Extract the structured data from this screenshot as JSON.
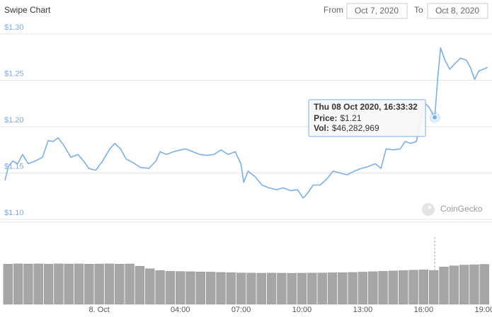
{
  "header": {
    "title": "Swipe Chart",
    "from_label": "From",
    "from_date": "Oct 7, 2020",
    "to_label": "To",
    "to_date": "Oct 8, 2020"
  },
  "watermark": "CoinGecko",
  "chart_data": [
    {
      "type": "line",
      "color": "#7cb0e4",
      "grid": true,
      "x": [
        -4.65,
        -4.48,
        -4.27,
        -4.02,
        -3.78,
        -3.5,
        -3.15,
        -2.8,
        -2.52,
        -2.27,
        -2.03,
        -1.75,
        -1.4,
        -1.05,
        -0.77,
        -0.52,
        -0.17,
        0.17,
        0.52,
        0.77,
        1.05,
        1.33,
        1.68,
        2.03,
        2.45,
        2.8,
        3.0,
        3.32,
        3.67,
        4.02,
        4.26,
        4.61,
        4.96,
        5.31,
        5.66,
        6.01,
        6.36,
        6.71,
        6.99,
        7.13,
        7.34,
        7.69,
        8.03,
        8.38,
        8.73,
        9.08,
        9.43,
        9.78,
        10.06,
        10.31,
        10.55,
        10.9,
        11.25,
        11.53,
        11.88,
        12.23,
        12.58,
        12.93,
        13.28,
        13.62,
        13.9,
        14.15,
        14.5,
        14.85,
        15.09,
        15.37,
        15.65,
        16.0,
        16.24,
        16.55,
        16.7,
        16.84,
        17.05,
        17.29,
        17.54,
        17.82,
        18.1,
        18.31,
        18.52,
        18.73,
        18.95,
        19.16
      ],
      "values": [
        1.142,
        1.157,
        1.163,
        1.16,
        1.17,
        1.16,
        1.163,
        1.167,
        1.185,
        1.184,
        1.188,
        1.18,
        1.167,
        1.17,
        1.163,
        1.155,
        1.153,
        1.163,
        1.176,
        1.182,
        1.176,
        1.165,
        1.161,
        1.156,
        1.155,
        1.163,
        1.173,
        1.17,
        1.173,
        1.175,
        1.176,
        1.173,
        1.17,
        1.169,
        1.17,
        1.175,
        1.17,
        1.173,
        1.16,
        1.14,
        1.152,
        1.146,
        1.137,
        1.134,
        1.132,
        1.134,
        1.131,
        1.132,
        1.123,
        1.129,
        1.137,
        1.137,
        1.144,
        1.152,
        1.15,
        1.148,
        1.152,
        1.155,
        1.157,
        1.16,
        1.155,
        1.176,
        1.175,
        1.176,
        1.184,
        1.182,
        1.184,
        1.226,
        1.222,
        1.21,
        1.253,
        1.285,
        1.272,
        1.262,
        1.268,
        1.274,
        1.272,
        1.264,
        1.251,
        1.26,
        1.262,
        1.264
      ],
      "xlim": [
        -4.65,
        19.2
      ],
      "ylim": [
        1.1,
        1.3
      ],
      "yticks": [
        {
          "value": 1.1,
          "label": "$1.10"
        },
        {
          "value": 1.15,
          "label": "$1.15"
        },
        {
          "value": 1.2,
          "label": "$1.20"
        },
        {
          "value": 1.25,
          "label": "$1.25"
        },
        {
          "value": 1.3,
          "label": "$1.30"
        }
      ]
    },
    {
      "type": "bar",
      "color": "#a6a6a6",
      "x": [
        -4.5,
        -4.0,
        -3.5,
        -3.0,
        -2.5,
        -2.0,
        -1.5,
        -1.0,
        -0.5,
        0.0,
        0.5,
        1.0,
        1.5,
        2.0,
        2.5,
        3.0,
        3.5,
        4.0,
        4.5,
        5.0,
        5.5,
        6.0,
        6.5,
        7.0,
        7.5,
        8.0,
        8.5,
        9.0,
        9.5,
        10.0,
        10.5,
        11.0,
        11.5,
        12.0,
        12.5,
        13.0,
        13.5,
        14.0,
        14.5,
        15.0,
        15.5,
        16.0,
        16.5,
        17.0,
        17.5,
        18.0,
        18.5,
        19.0
      ],
      "values": [
        54800000,
        55200000,
        55000000,
        55100000,
        54900000,
        55200000,
        55000000,
        55100000,
        54800000,
        55000000,
        55200000,
        54900000,
        55000000,
        52000000,
        48500000,
        46000000,
        45000000,
        44800000,
        44500000,
        44200000,
        44000000,
        43500000,
        43200000,
        42800000,
        42600000,
        42500000,
        42600000,
        42500000,
        42400000,
        42500000,
        42600000,
        42800000,
        43000000,
        43200000,
        43500000,
        44000000,
        44500000,
        45000000,
        45500000,
        46000000,
        46500000,
        47000000,
        46300000,
        51000000,
        52500000,
        53500000,
        54000000,
        54500000
      ],
      "xlim": [
        -4.65,
        19.2
      ],
      "ylim": [
        0,
        56000000
      ],
      "xticks": [
        {
          "value": 0,
          "label": "8. Oct"
        },
        {
          "value": 4,
          "label": "04:00"
        },
        {
          "value": 7,
          "label": "07:00"
        },
        {
          "value": 10,
          "label": "10:00"
        },
        {
          "value": 13,
          "label": "13:00"
        },
        {
          "value": 16,
          "label": "16:00"
        },
        {
          "value": 19,
          "label": "19:00"
        }
      ]
    }
  ],
  "tooltip": {
    "title": "Thu 08 Oct 2020, 16:33:32",
    "x": 16.55,
    "rows": [
      {
        "name": "Price:",
        "value": 1.21,
        "value_label": "$1.21"
      },
      {
        "name": "Vol:",
        "value": 46282969,
        "value_label": "$46,282,969"
      }
    ]
  }
}
